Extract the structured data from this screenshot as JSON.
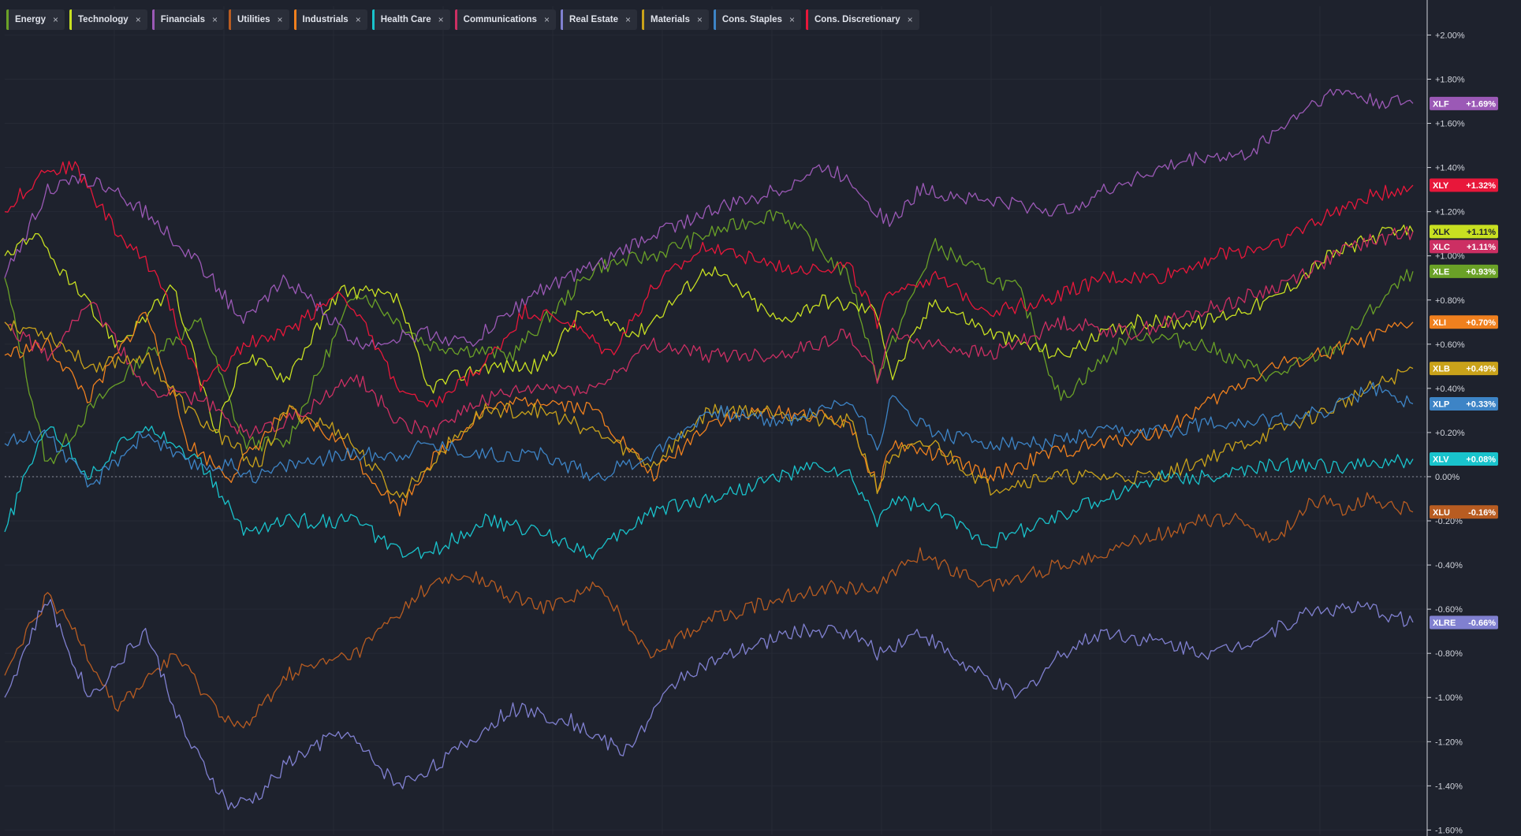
{
  "legend": [
    {
      "label": "Energy",
      "color": "#6aa127"
    },
    {
      "label": "Technology",
      "color": "#c8e021"
    },
    {
      "label": "Financials",
      "color": "#9b59b6"
    },
    {
      "label": "Utilities",
      "color": "#b85c21"
    },
    {
      "label": "Industrials",
      "color": "#f0801e"
    },
    {
      "label": "Health Care",
      "color": "#19c3cc"
    },
    {
      "label": "Communications",
      "color": "#cc2f63"
    },
    {
      "label": "Real Estate",
      "color": "#8080d0"
    },
    {
      "label": "Materials",
      "color": "#c9a21a"
    },
    {
      "label": "Cons. Staples",
      "color": "#3d84c6"
    },
    {
      "label": "Cons. Discretionary",
      "color": "#e8173a"
    }
  ],
  "close_glyph": "×",
  "chart_data": {
    "type": "line",
    "xlabel": "",
    "ylabel": "",
    "ylim": [
      -1.62,
      2.13
    ],
    "yticks": [
      "+2.00%",
      "+1.80%",
      "+1.60%",
      "+1.40%",
      "+1.20%",
      "+1.00%",
      "+0.80%",
      "+0.60%",
      "+0.40%",
      "+0.20%",
      "0.00%",
      "-0.20%",
      "-0.40%",
      "-0.60%",
      "-0.80%",
      "-1.00%",
      "-1.20%",
      "-1.40%",
      "-1.60%"
    ],
    "ytick_values": [
      2.0,
      1.8,
      1.6,
      1.4,
      1.2,
      1.0,
      0.8,
      0.6,
      0.4,
      0.2,
      0.0,
      -0.2,
      -0.4,
      -0.6,
      -0.8,
      -1.0,
      -1.2,
      -1.4,
      -1.6
    ],
    "zero_line": true,
    "grid": true,
    "series": [
      {
        "name": "Energy",
        "ticker": "XLE",
        "last": "+0.93%",
        "color": "#6aa127",
        "text_color": "#ffffff",
        "x": [
          0,
          0.03,
          0.06,
          0.1,
          0.14,
          0.17,
          0.2,
          0.25,
          0.3,
          0.36,
          0.42,
          0.46,
          0.5,
          0.55,
          0.6,
          0.62,
          0.66,
          0.7,
          0.72,
          0.75,
          0.8,
          0.85,
          0.9,
          0.95,
          0.97,
          1
        ],
        "y": [
          0.9,
          0.05,
          0.3,
          0.55,
          0.7,
          0.15,
          0.15,
          0.85,
          0.6,
          0.55,
          0.95,
          1.0,
          1.1,
          1.2,
          0.9,
          0.45,
          1.05,
          0.9,
          0.85,
          0.35,
          0.65,
          0.6,
          0.45,
          0.6,
          0.75,
          0.93
        ]
      },
      {
        "name": "Technology",
        "ticker": "XLK",
        "last": "+1.11%",
        "color": "#c8e021",
        "text_color": "#1e222d",
        "x": [
          0,
          0.02,
          0.05,
          0.08,
          0.12,
          0.15,
          0.17,
          0.2,
          0.24,
          0.28,
          0.3,
          0.34,
          0.38,
          0.41,
          0.45,
          0.5,
          0.55,
          0.58,
          0.62,
          0.63,
          0.66,
          0.7,
          0.75,
          0.8,
          0.85,
          0.9,
          0.94,
          0.98,
          1
        ],
        "y": [
          1.0,
          1.1,
          0.85,
          0.6,
          0.85,
          0.2,
          0.55,
          0.45,
          0.85,
          0.8,
          0.4,
          0.5,
          0.5,
          0.75,
          0.65,
          0.95,
          0.7,
          0.8,
          0.75,
          0.45,
          0.8,
          0.65,
          0.55,
          0.7,
          0.7,
          0.8,
          1.0,
          1.1,
          1.11
        ]
      },
      {
        "name": "Financials",
        "ticker": "XLF",
        "last": "+1.69%",
        "color": "#9b59b6",
        "text_color": "#ffffff",
        "x": [
          0,
          0.03,
          0.06,
          0.1,
          0.14,
          0.17,
          0.2,
          0.25,
          0.3,
          0.33,
          0.38,
          0.42,
          0.46,
          0.5,
          0.55,
          0.58,
          0.6,
          0.62,
          0.63,
          0.65,
          0.7,
          0.75,
          0.8,
          0.85,
          0.88,
          0.9,
          0.93,
          0.95,
          0.97,
          1
        ],
        "y": [
          0.9,
          1.3,
          1.35,
          1.2,
          0.95,
          0.7,
          0.9,
          0.6,
          0.65,
          0.6,
          0.85,
          0.95,
          1.1,
          1.2,
          1.3,
          1.4,
          1.35,
          1.2,
          1.15,
          1.3,
          1.25,
          1.2,
          1.35,
          1.45,
          1.45,
          1.55,
          1.7,
          1.75,
          1.7,
          1.69
        ]
      },
      {
        "name": "Utilities",
        "ticker": "XLU",
        "last": "-0.16%",
        "color": "#b85c21",
        "text_color": "#ffffff",
        "x": [
          0,
          0.03,
          0.05,
          0.08,
          0.12,
          0.15,
          0.17,
          0.2,
          0.25,
          0.3,
          0.33,
          0.38,
          0.42,
          0.46,
          0.5,
          0.55,
          0.58,
          0.62,
          0.65,
          0.7,
          0.75,
          0.8,
          0.85,
          0.88,
          0.9,
          0.93,
          0.95,
          0.97,
          1
        ],
        "y": [
          -0.9,
          -0.55,
          -0.7,
          -1.05,
          -0.8,
          -1.05,
          -1.15,
          -0.9,
          -0.8,
          -0.5,
          -0.45,
          -0.6,
          -0.5,
          -0.8,
          -0.65,
          -0.55,
          -0.5,
          -0.5,
          -0.35,
          -0.5,
          -0.4,
          -0.3,
          -0.2,
          -0.2,
          -0.3,
          -0.1,
          -0.15,
          -0.1,
          -0.16
        ]
      },
      {
        "name": "Industrials",
        "ticker": "XLI",
        "last": "+0.70%",
        "color": "#f0801e",
        "text_color": "#ffffff",
        "x": [
          0,
          0.03,
          0.06,
          0.1,
          0.13,
          0.16,
          0.18,
          0.2,
          0.24,
          0.28,
          0.3,
          0.34,
          0.38,
          0.42,
          0.46,
          0.5,
          0.55,
          0.6,
          0.62,
          0.63,
          0.66,
          0.7,
          0.74,
          0.78,
          0.82,
          0.86,
          0.9,
          0.93,
          0.96,
          1
        ],
        "y": [
          0.55,
          0.6,
          0.35,
          0.75,
          0.15,
          0.0,
          0.15,
          0.3,
          0.15,
          -0.15,
          0.05,
          0.3,
          0.35,
          0.3,
          0.0,
          0.25,
          0.3,
          0.25,
          -0.05,
          0.15,
          0.1,
          0.0,
          0.1,
          0.15,
          0.2,
          0.35,
          0.5,
          0.55,
          0.6,
          0.7
        ]
      },
      {
        "name": "Health Care",
        "ticker": "XLV",
        "last": "+0.08%",
        "color": "#19c3cc",
        "text_color": "#ffffff",
        "x": [
          0,
          0.03,
          0.06,
          0.1,
          0.14,
          0.17,
          0.2,
          0.25,
          0.28,
          0.3,
          0.34,
          0.38,
          0.42,
          0.46,
          0.5,
          0.55,
          0.58,
          0.6,
          0.62,
          0.63,
          0.66,
          0.7,
          0.74,
          0.78,
          0.82,
          0.86,
          0.9,
          0.94,
          0.97,
          1
        ],
        "y": [
          -0.25,
          0.25,
          0.0,
          0.25,
          0.05,
          -0.25,
          -0.2,
          -0.2,
          -0.35,
          -0.35,
          -0.2,
          -0.25,
          -0.35,
          -0.15,
          -0.1,
          0.0,
          0.05,
          0.0,
          -0.2,
          -0.1,
          -0.15,
          -0.3,
          -0.2,
          -0.1,
          0.0,
          0.0,
          0.05,
          0.05,
          0.05,
          0.08
        ]
      },
      {
        "name": "Communications",
        "ticker": "XLC",
        "last": "+1.11%",
        "color": "#cc2f63",
        "text_color": "#ffffff",
        "x": [
          0,
          0.03,
          0.06,
          0.1,
          0.14,
          0.17,
          0.2,
          0.25,
          0.28,
          0.3,
          0.34,
          0.38,
          0.42,
          0.46,
          0.5,
          0.55,
          0.6,
          0.62,
          0.63,
          0.66,
          0.7,
          0.75,
          0.8,
          0.85,
          0.9,
          0.93,
          0.96,
          1
        ],
        "y": [
          0.7,
          0.55,
          0.8,
          0.4,
          0.35,
          0.2,
          0.25,
          0.45,
          0.25,
          0.2,
          0.35,
          0.4,
          0.4,
          0.6,
          0.55,
          0.55,
          0.65,
          0.45,
          0.65,
          0.6,
          0.55,
          0.7,
          0.65,
          0.75,
          0.85,
          0.95,
          1.05,
          1.11
        ]
      },
      {
        "name": "Real Estate",
        "ticker": "XLRE",
        "last": "-0.66%",
        "color": "#8080d0",
        "text_color": "#ffffff",
        "x": [
          0,
          0.03,
          0.06,
          0.1,
          0.13,
          0.16,
          0.18,
          0.2,
          0.24,
          0.28,
          0.32,
          0.36,
          0.4,
          0.44,
          0.48,
          0.52,
          0.56,
          0.6,
          0.62,
          0.65,
          0.68,
          0.72,
          0.75,
          0.78,
          0.82,
          0.86,
          0.9,
          0.93,
          0.95,
          0.97,
          1
        ],
        "y": [
          -1.0,
          -0.55,
          -1.0,
          -0.7,
          -1.2,
          -1.5,
          -1.45,
          -1.3,
          -1.15,
          -1.4,
          -1.25,
          -1.05,
          -1.1,
          -1.25,
          -0.9,
          -0.8,
          -0.7,
          -0.7,
          -0.8,
          -0.7,
          -0.85,
          -1.0,
          -0.8,
          -0.7,
          -0.75,
          -0.8,
          -0.7,
          -0.6,
          -0.6,
          -0.6,
          -0.66
        ]
      },
      {
        "name": "Materials",
        "ticker": "XLB",
        "last": "+0.49%",
        "color": "#c9a21a",
        "text_color": "#ffffff",
        "x": [
          0,
          0.03,
          0.06,
          0.1,
          0.13,
          0.16,
          0.18,
          0.2,
          0.24,
          0.28,
          0.3,
          0.34,
          0.38,
          0.42,
          0.46,
          0.5,
          0.55,
          0.58,
          0.6,
          0.62,
          0.63,
          0.66,
          0.7,
          0.74,
          0.78,
          0.82,
          0.86,
          0.9,
          0.94,
          0.97,
          1
        ],
        "y": [
          0.7,
          0.65,
          0.5,
          0.55,
          0.3,
          0.15,
          0.05,
          0.3,
          0.2,
          -0.1,
          0.05,
          0.3,
          0.3,
          0.2,
          0.05,
          0.3,
          0.3,
          0.25,
          0.25,
          -0.05,
          0.1,
          0.15,
          -0.05,
          0.0,
          0.0,
          0.0,
          0.1,
          0.2,
          0.3,
          0.4,
          0.49
        ]
      },
      {
        "name": "Cons. Staples",
        "ticker": "XLP",
        "last": "+0.33%",
        "color": "#3d84c6",
        "text_color": "#ffffff",
        "x": [
          0,
          0.03,
          0.06,
          0.1,
          0.13,
          0.16,
          0.18,
          0.2,
          0.24,
          0.28,
          0.3,
          0.34,
          0.38,
          0.42,
          0.46,
          0.5,
          0.55,
          0.58,
          0.6,
          0.62,
          0.63,
          0.66,
          0.7,
          0.74,
          0.78,
          0.82,
          0.86,
          0.9,
          0.94,
          0.97,
          1
        ],
        "y": [
          0.15,
          0.2,
          -0.05,
          0.2,
          0.05,
          0.05,
          0.0,
          0.05,
          0.1,
          0.1,
          0.15,
          0.1,
          0.1,
          0.0,
          0.1,
          0.3,
          0.25,
          0.3,
          0.35,
          0.15,
          0.35,
          0.2,
          0.15,
          0.15,
          0.2,
          0.2,
          0.25,
          0.25,
          0.3,
          0.4,
          0.33
        ]
      },
      {
        "name": "Cons. Discretionary",
        "ticker": "XLY",
        "last": "+1.32%",
        "color": "#e8173a",
        "text_color": "#ffffff",
        "x": [
          0,
          0.03,
          0.05,
          0.08,
          0.11,
          0.14,
          0.17,
          0.2,
          0.24,
          0.28,
          0.3,
          0.34,
          0.37,
          0.4,
          0.43,
          0.46,
          0.5,
          0.55,
          0.6,
          0.62,
          0.63,
          0.66,
          0.7,
          0.74,
          0.78,
          0.82,
          0.86,
          0.9,
          0.93,
          0.96,
          1
        ],
        "y": [
          1.2,
          1.4,
          1.4,
          1.1,
          0.9,
          0.4,
          0.6,
          0.65,
          0.85,
          0.4,
          0.3,
          0.5,
          0.75,
          0.7,
          0.55,
          0.85,
          1.05,
          0.95,
          0.95,
          0.7,
          0.85,
          0.9,
          0.75,
          0.8,
          0.9,
          0.9,
          1.0,
          1.05,
          1.15,
          1.25,
          1.32
        ]
      }
    ]
  }
}
